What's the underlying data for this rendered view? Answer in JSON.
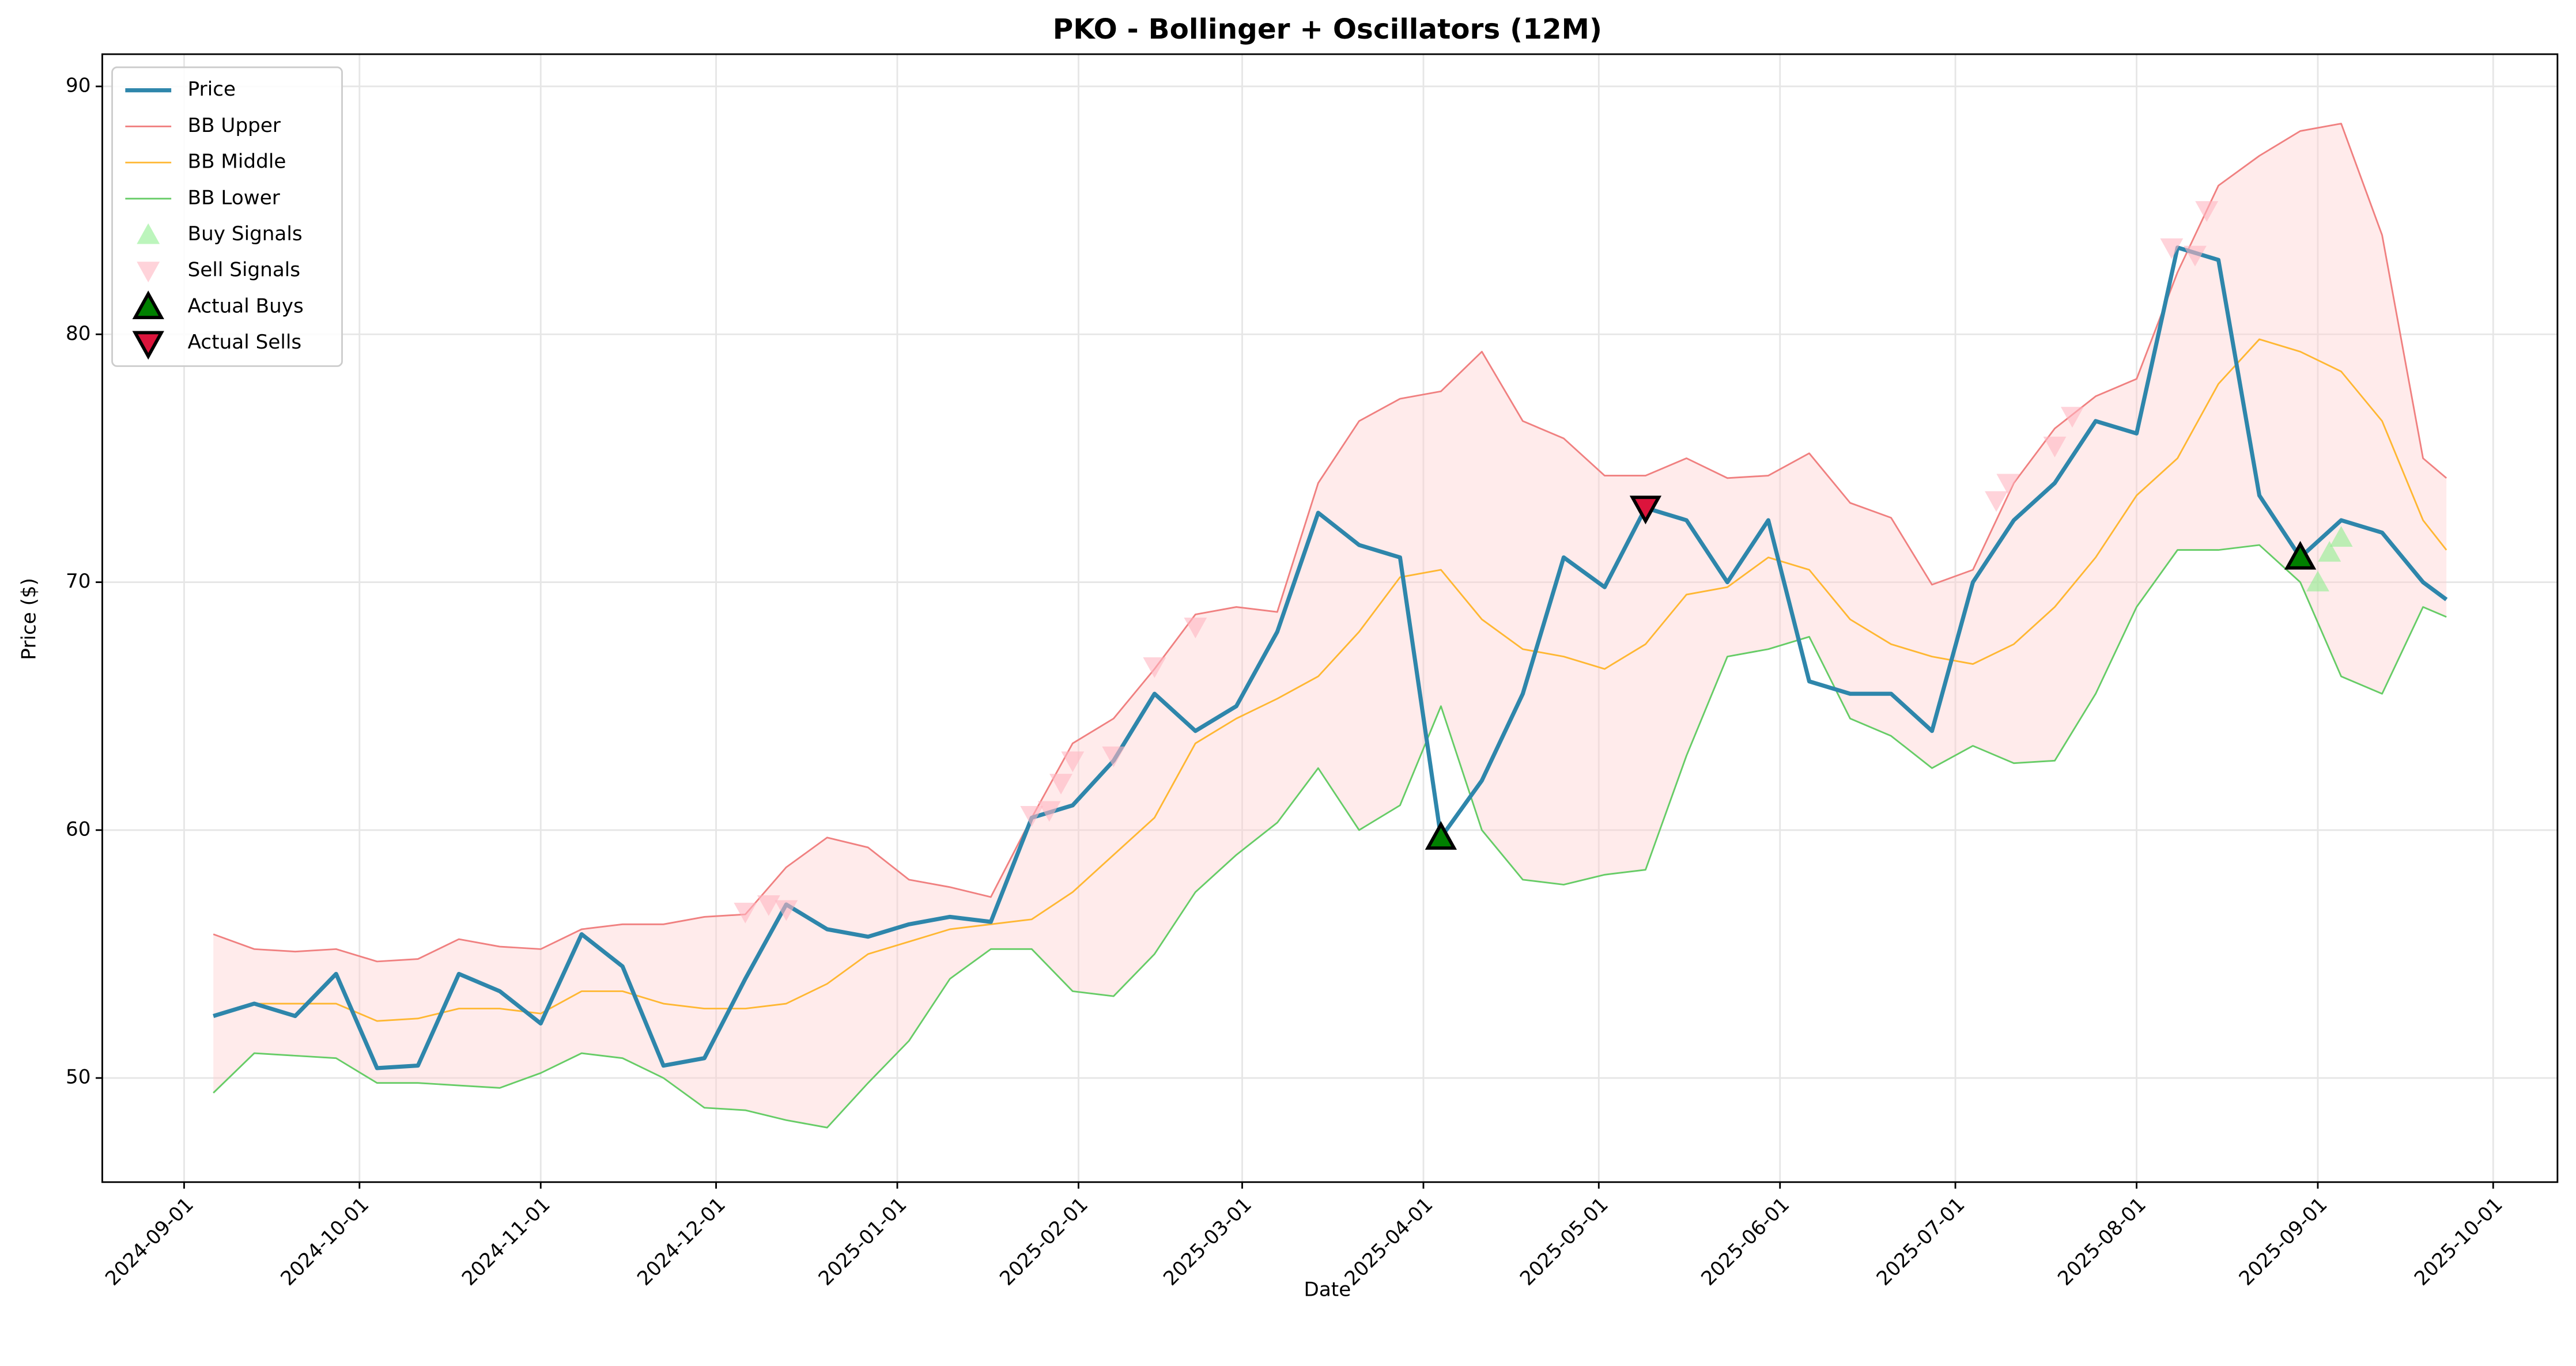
{
  "chart_data": {
    "type": "line",
    "title": "PKO - Bollinger + Oscillators (12M)",
    "x_label": "Date",
    "y_label": "Price ($)",
    "x": [
      "2024-09-06",
      "2024-09-13",
      "2024-09-20",
      "2024-09-27",
      "2024-10-04",
      "2024-10-11",
      "2024-10-18",
      "2024-10-25",
      "2024-11-01",
      "2024-11-08",
      "2024-11-15",
      "2024-11-22",
      "2024-11-29",
      "2024-12-06",
      "2024-12-13",
      "2024-12-20",
      "2024-12-27",
      "2025-01-03",
      "2025-01-10",
      "2025-01-17",
      "2025-01-24",
      "2025-01-31",
      "2025-02-07",
      "2025-02-14",
      "2025-02-21",
      "2025-02-28",
      "2025-03-07",
      "2025-03-14",
      "2025-03-21",
      "2025-03-28",
      "2025-04-04",
      "2025-04-11",
      "2025-04-18",
      "2025-04-25",
      "2025-05-02",
      "2025-05-09",
      "2025-05-16",
      "2025-05-23",
      "2025-05-30",
      "2025-06-06",
      "2025-06-13",
      "2025-06-20",
      "2025-06-27",
      "2025-07-04",
      "2025-07-11",
      "2025-07-18",
      "2025-07-25",
      "2025-08-01",
      "2025-08-08",
      "2025-08-15",
      "2025-08-22",
      "2025-08-29",
      "2025-09-05",
      "2025-09-12",
      "2025-09-19",
      "2025-09-23"
    ],
    "series": [
      {
        "name": "Price",
        "color": "#2e86ab",
        "width": 2.5,
        "values": [
          52.5,
          53,
          52.5,
          54.2,
          50.4,
          50.5,
          54.2,
          53.5,
          52.2,
          55.8,
          54.5,
          50.5,
          50.8,
          54,
          57,
          56,
          55.7,
          56.2,
          56.5,
          56.3,
          60.5,
          61,
          62.8,
          65.5,
          64,
          65,
          68,
          72.8,
          71.5,
          71,
          59.7,
          62,
          65.5,
          71,
          69.8,
          73,
          72.5,
          70,
          72.5,
          66,
          65.5,
          65.5,
          64,
          70,
          72.5,
          74,
          76.5,
          76,
          83.5,
          83,
          73.5,
          71,
          72.5,
          72,
          70,
          69.3
        ]
      },
      {
        "name": "BB Upper",
        "color": "#f08080",
        "width": 1,
        "values": [
          55.8,
          55.2,
          55.1,
          55.2,
          54.7,
          54.8,
          55.6,
          55.3,
          55.2,
          56,
          56.2,
          56.2,
          56.5,
          56.6,
          58.5,
          59.7,
          59.3,
          58,
          57.7,
          57.3,
          60.5,
          63.5,
          64.5,
          66.5,
          68.7,
          69,
          68.8,
          74,
          76.5,
          77.4,
          77.7,
          79.3,
          76.5,
          75.8,
          74.3,
          74.3,
          75,
          74.2,
          74.3,
          75.2,
          73.2,
          72.6,
          69.9,
          70.5,
          74,
          76.2,
          77.5,
          78.2,
          82.5,
          86,
          87.2,
          88.2,
          88.5,
          84,
          75,
          74.2
        ]
      },
      {
        "name": "BB Middle",
        "color": "#ffb732",
        "width": 1,
        "values": [
          52.5,
          53,
          53,
          53,
          52.3,
          52.4,
          52.8,
          52.8,
          52.6,
          53.5,
          53.5,
          53,
          52.8,
          52.8,
          53,
          53.8,
          55,
          55.5,
          56,
          56.2,
          56.4,
          57.5,
          59,
          60.5,
          63.5,
          64.5,
          65.3,
          66.2,
          68,
          70.2,
          70.5,
          68.5,
          67.3,
          67,
          66.5,
          67.5,
          69.5,
          69.8,
          71,
          70.5,
          68.5,
          67.5,
          67,
          66.7,
          67.5,
          69,
          71,
          73.5,
          75,
          78,
          79.8,
          79.3,
          78.5,
          76.5,
          72.5,
          71.3
        ]
      },
      {
        "name": "BB Lower",
        "color": "#66cc66",
        "width": 1,
        "values": [
          49.4,
          51,
          50.9,
          50.8,
          49.8,
          49.8,
          49.7,
          49.6,
          50.2,
          51,
          50.8,
          50,
          48.8,
          48.7,
          48.3,
          48,
          49.8,
          51.5,
          54,
          55.2,
          55.2,
          53.5,
          53.3,
          55,
          57.5,
          59,
          60.3,
          62.5,
          60,
          61,
          65,
          60,
          58,
          57.8,
          58.2,
          58.4,
          63,
          67,
          67.3,
          67.8,
          64.5,
          63.8,
          62.5,
          63.4,
          62.7,
          62.8,
          65.5,
          69,
          71.3,
          71.3,
          71.5,
          70,
          66.2,
          65.5,
          69,
          68.6
        ]
      }
    ],
    "markers": [
      {
        "name": "Buy Signals",
        "color": "#90ee90",
        "marker": "up",
        "x": [
          "2025-09-01",
          "2025-09-03",
          "2025-09-05"
        ],
        "values": [
          70,
          71.2,
          71.8
        ]
      },
      {
        "name": "Sell Signals",
        "color": "#ffb6c1",
        "marker": "down",
        "x": [
          "2024-12-06",
          "2024-12-10",
          "2024-12-13",
          "2025-01-24",
          "2025-01-27",
          "2025-01-29",
          "2025-01-31",
          "2025-02-07",
          "2025-02-14",
          "2025-02-21",
          "2025-07-08",
          "2025-07-10",
          "2025-07-18",
          "2025-07-21",
          "2025-08-07",
          "2025-08-11",
          "2025-08-13"
        ],
        "values": [
          56.7,
          57,
          56.8,
          60.6,
          60.8,
          61.9,
          62.8,
          63,
          66.6,
          68.2,
          73.3,
          74,
          75.5,
          76.7,
          83.5,
          83.2,
          85
        ]
      },
      {
        "name": "Actual Buys",
        "color": "#008000",
        "marker": "up",
        "x": [
          "2025-04-04",
          "2025-08-29"
        ],
        "values": [
          59.7,
          71
        ]
      },
      {
        "name": "Actual Sells",
        "color": "#dc143c",
        "marker": "down",
        "x": [
          "2025-05-09"
        ],
        "values": [
          73
        ]
      }
    ],
    "band_color": "#ffcccc",
    "xlim": [
      "2024-08-18",
      "2025-10-12"
    ],
    "xticks": [
      "2024-09-01",
      "2024-10-01",
      "2024-11-01",
      "2024-12-01",
      "2025-01-01",
      "2025-02-01",
      "2025-03-01",
      "2025-04-01",
      "2025-05-01",
      "2025-06-01",
      "2025-07-01",
      "2025-08-01",
      "2025-09-01",
      "2025-10-01"
    ],
    "ylim": [
      45.8,
      91.3
    ],
    "yticks": [
      50,
      60,
      70,
      80,
      90
    ],
    "grid": true,
    "legend": "upper left"
  }
}
